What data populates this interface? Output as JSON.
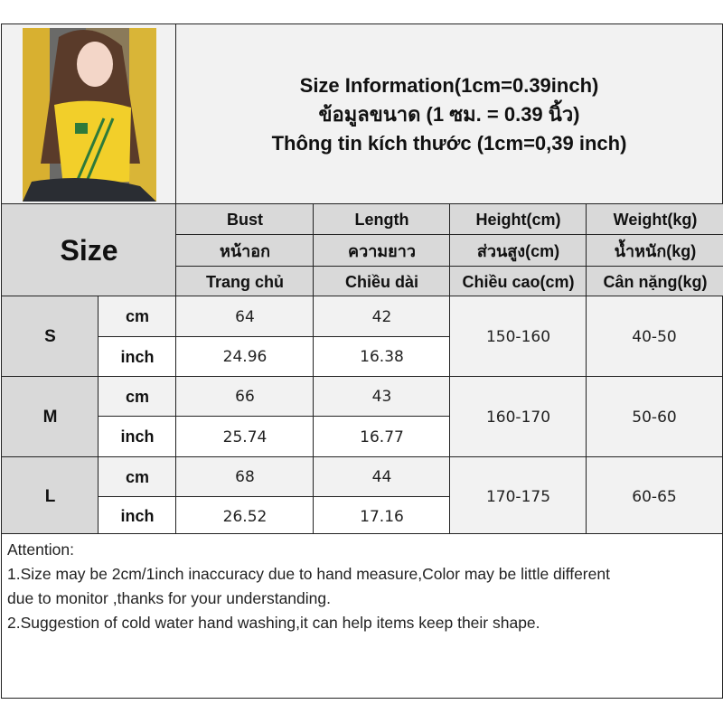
{
  "title": {
    "line1": "Size Information(1cm=0.39inch)",
    "line2": "ข้อมูลขนาด (1 ซม. = 0.39 นิ้ว)",
    "line3": "Thông tin kích thước (1cm=0,39 inch)"
  },
  "size_label": "Size",
  "columns": [
    {
      "en": "Bust",
      "th": "หน้าอก",
      "vi": "Trang chủ"
    },
    {
      "en": "Length",
      "th": "ความยาว",
      "vi": "Chiều dài"
    },
    {
      "en": "Height(cm)",
      "th": "ส่วนสูง(cm)",
      "vi": "Chiều cao(cm)"
    },
    {
      "en": "Weight(kg)",
      "th": "น้ำหนัก(kg)",
      "vi": "Cân nặng(kg)"
    }
  ],
  "units": {
    "cm": "cm",
    "inch": "inch"
  },
  "rows": [
    {
      "size": "S",
      "bust_cm": "64",
      "bust_inch": "24.96",
      "length_cm": "42",
      "length_inch": "16.38",
      "height": "150-160",
      "weight": "40-50"
    },
    {
      "size": "M",
      "bust_cm": "66",
      "bust_inch": "25.74",
      "length_cm": "43",
      "length_inch": "16.77",
      "height": "160-170",
      "weight": "50-60"
    },
    {
      "size": "L",
      "bust_cm": "68",
      "bust_inch": "26.52",
      "length_cm": "44",
      "length_inch": "17.16",
      "height": "170-175",
      "weight": "60-65"
    }
  ],
  "attention": {
    "heading": "Attention:",
    "line1": "1.Size may be 2cm/1inch inaccuracy due to hand measure,Color may be little different",
    "line2": "due to monitor ,thanks for your understanding.",
    "line3": "2.Suggestion of cold water hand washing,it can help items keep their shape."
  },
  "colors": {
    "header_gray": "#d9d9d9",
    "light_gray": "#f2f2f2",
    "border": "#222222",
    "shirt": "#f2cf2a"
  }
}
